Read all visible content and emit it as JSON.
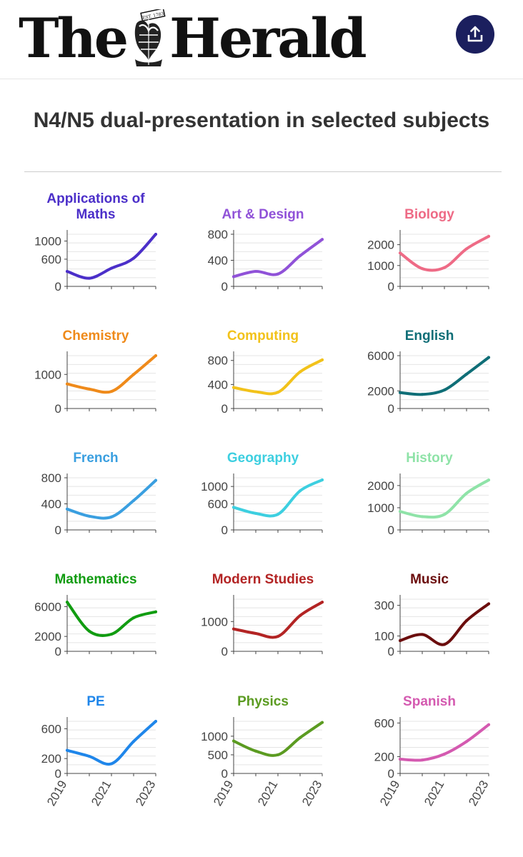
{
  "header": {
    "brand_left": "The",
    "brand_right": "Herald",
    "crest_text": "EST. 1783",
    "share_icon": "upload-icon",
    "share_color": "#1b1f5e"
  },
  "chart_title": "N4/N5 dual-presentation in selected subjects",
  "chart_data": {
    "type": "line",
    "title": "N4/N5 dual-presentation in selected subjects",
    "x": [
      2019,
      2020,
      2021,
      2022,
      2023
    ],
    "x_tick_labels": [
      "2019",
      "2021",
      "2023"
    ],
    "panels": [
      {
        "name": "Applications of Maths",
        "color": "#4b2fc9",
        "values": [
          330,
          180,
          400,
          620,
          1150
        ],
        "yticks": [
          0,
          600,
          1000
        ],
        "ylim": [
          0,
          1150
        ]
      },
      {
        "name": "Art & Design",
        "color": "#9052d8",
        "values": [
          150,
          230,
          190,
          470,
          720
        ],
        "yticks": [
          0,
          400,
          800
        ],
        "ylim": [
          0,
          800
        ]
      },
      {
        "name": "Biology",
        "color": "#ee6b86",
        "values": [
          1600,
          850,
          900,
          1800,
          2400
        ],
        "yticks": [
          0,
          1000,
          2000
        ],
        "ylim": [
          0,
          2500
        ]
      },
      {
        "name": "Chemistry",
        "color": "#ef8a1a",
        "values": [
          720,
          570,
          500,
          1000,
          1550
        ],
        "yticks": [
          0,
          1000
        ],
        "ylim": [
          0,
          1550
        ]
      },
      {
        "name": "Computing",
        "color": "#f2c21a",
        "values": [
          350,
          280,
          270,
          610,
          810
        ],
        "yticks": [
          0,
          400,
          800
        ],
        "ylim": [
          0,
          880
        ]
      },
      {
        "name": "English",
        "color": "#0f6e77",
        "values": [
          1800,
          1600,
          2100,
          3900,
          5800
        ],
        "yticks": [
          0,
          2000,
          6000
        ],
        "ylim": [
          0,
          6000
        ]
      },
      {
        "name": "French",
        "color": "#3a9fe0",
        "values": [
          320,
          210,
          200,
          450,
          760
        ],
        "yticks": [
          0,
          400,
          800
        ],
        "ylim": [
          0,
          800
        ]
      },
      {
        "name": "Geography",
        "color": "#3dcfe0",
        "values": [
          520,
          380,
          360,
          900,
          1150
        ],
        "yticks": [
          0,
          600,
          1000
        ],
        "ylim": [
          0,
          1200
        ]
      },
      {
        "name": "History",
        "color": "#8fe3a8",
        "values": [
          830,
          600,
          700,
          1650,
          2250
        ],
        "yticks": [
          0,
          1000,
          2000
        ],
        "ylim": [
          0,
          2350
        ]
      },
      {
        "name": "Mathematics",
        "color": "#119c11",
        "values": [
          6600,
          2700,
          2300,
          4500,
          5300
        ],
        "yticks": [
          0,
          2000,
          6000
        ],
        "ylim": [
          0,
          7000
        ]
      },
      {
        "name": "Modern Studies",
        "color": "#b32424",
        "values": [
          750,
          600,
          500,
          1200,
          1650
        ],
        "yticks": [
          0,
          1000
        ],
        "ylim": [
          0,
          1750
        ]
      },
      {
        "name": "Music",
        "color": "#6b0d0d",
        "values": [
          70,
          110,
          45,
          200,
          310
        ],
        "yticks": [
          0,
          100,
          300
        ],
        "ylim": [
          0,
          340
        ]
      },
      {
        "name": "PE",
        "color": "#1f86ea",
        "values": [
          310,
          230,
          130,
          430,
          700
        ],
        "yticks": [
          0,
          200,
          600
        ],
        "ylim": [
          0,
          700
        ]
      },
      {
        "name": "Physics",
        "color": "#5b9b21",
        "values": [
          870,
          600,
          500,
          960,
          1370
        ],
        "yticks": [
          0,
          500,
          1000
        ],
        "ylim": [
          0,
          1400
        ]
      },
      {
        "name": "Spanish",
        "color": "#d45ab0",
        "values": [
          170,
          160,
          230,
          380,
          580
        ],
        "yticks": [
          0,
          200,
          600
        ],
        "ylim": [
          0,
          620
        ]
      }
    ]
  }
}
